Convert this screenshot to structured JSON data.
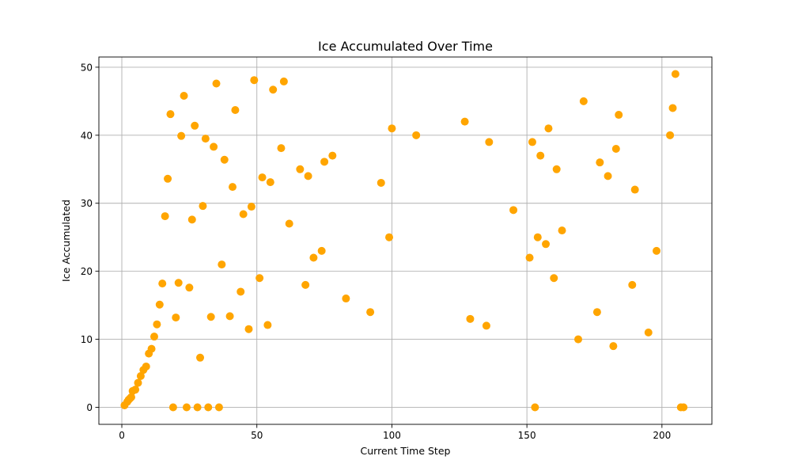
{
  "chart_data": {
    "type": "scatter",
    "title": "Ice Accumulated Over Time",
    "xlabel": "Current Time Step",
    "ylabel": "Ice Accumulated",
    "xlim": [
      -8.5,
      218.5
    ],
    "ylim": [
      -2.5,
      51.5
    ],
    "xticks": [
      0,
      50,
      100,
      150,
      200
    ],
    "yticks": [
      0,
      10,
      20,
      30,
      40,
      50
    ],
    "grid": true,
    "marker_color": "#FFA500",
    "points": [
      [
        1,
        0.3
      ],
      [
        2,
        0.8
      ],
      [
        2.5,
        1.1
      ],
      [
        3,
        1.3
      ],
      [
        3.5,
        1.5
      ],
      [
        4,
        2.4
      ],
      [
        5,
        2.6
      ],
      [
        6,
        3.6
      ],
      [
        7,
        4.6
      ],
      [
        8,
        5.5
      ],
      [
        9,
        6.0
      ],
      [
        10,
        7.9
      ],
      [
        11,
        8.6
      ],
      [
        12,
        10.4
      ],
      [
        13,
        12.2
      ],
      [
        14,
        15.1
      ],
      [
        15,
        18.2
      ],
      [
        16,
        28.1
      ],
      [
        17,
        33.6
      ],
      [
        18,
        43.1
      ],
      [
        19,
        0
      ],
      [
        20,
        13.2
      ],
      [
        21,
        18.3
      ],
      [
        22,
        39.9
      ],
      [
        23,
        45.8
      ],
      [
        24,
        0
      ],
      [
        25,
        17.6
      ],
      [
        26,
        27.6
      ],
      [
        27,
        41.4
      ],
      [
        28,
        0
      ],
      [
        29,
        7.3
      ],
      [
        30,
        29.6
      ],
      [
        31,
        39.5
      ],
      [
        32,
        0
      ],
      [
        33,
        13.3
      ],
      [
        34,
        38.3
      ],
      [
        35,
        47.6
      ],
      [
        36,
        0
      ],
      [
        37,
        21.0
      ],
      [
        38,
        36.4
      ],
      [
        40,
        13.4
      ],
      [
        41,
        32.4
      ],
      [
        42,
        43.7
      ],
      [
        44,
        17.0
      ],
      [
        45,
        28.4
      ],
      [
        47,
        11.5
      ],
      [
        48,
        29.5
      ],
      [
        49,
        48.1
      ],
      [
        51,
        19.0
      ],
      [
        52,
        33.8
      ],
      [
        54,
        12.1
      ],
      [
        55,
        33.1
      ],
      [
        56,
        46.7
      ],
      [
        59,
        38.1
      ],
      [
        60,
        47.9
      ],
      [
        62,
        27.0
      ],
      [
        66,
        35.0
      ],
      [
        68,
        18.0
      ],
      [
        69,
        34.0
      ],
      [
        71,
        22.0
      ],
      [
        74,
        23.0
      ],
      [
        75,
        36.1
      ],
      [
        78,
        37.0
      ],
      [
        83,
        16.0
      ],
      [
        92,
        14.0
      ],
      [
        96,
        33.0
      ],
      [
        99,
        25.0
      ],
      [
        100,
        41.0
      ],
      [
        109,
        40.0
      ],
      [
        127,
        42.0
      ],
      [
        129,
        13.0
      ],
      [
        135,
        12.0
      ],
      [
        136,
        39.0
      ],
      [
        145,
        29.0
      ],
      [
        151,
        22.0
      ],
      [
        152,
        39.0
      ],
      [
        153,
        0
      ],
      [
        154,
        25.0
      ],
      [
        155,
        37.0
      ],
      [
        157,
        24.0
      ],
      [
        158,
        41.0
      ],
      [
        160,
        19.0
      ],
      [
        161,
        35.0
      ],
      [
        163,
        26.0
      ],
      [
        169,
        10.0
      ],
      [
        171,
        45.0
      ],
      [
        176,
        14.0
      ],
      [
        177,
        36.0
      ],
      [
        180,
        34.0
      ],
      [
        182,
        9.0
      ],
      [
        183,
        38.0
      ],
      [
        184,
        43.0
      ],
      [
        189,
        18.0
      ],
      [
        190,
        32.0
      ],
      [
        195,
        11.0
      ],
      [
        198,
        23.0
      ],
      [
        203,
        40.0
      ],
      [
        204,
        44.0
      ],
      [
        205,
        49.0
      ],
      [
        207,
        0
      ],
      [
        208,
        0
      ]
    ]
  }
}
